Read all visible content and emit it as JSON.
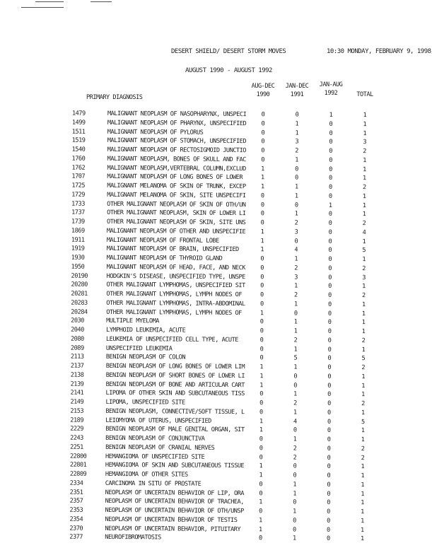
{
  "header": {
    "title": "DESERT SHIELD/ DESERT STORM MOVES",
    "datetime": "10:30 MONDAY, FEBRUARY 9, 1998",
    "subtitle": "AUGUST 1990 - AUGUST 1992"
  },
  "columns": {
    "diagnosis": "PRIMARY DIAGNOSIS",
    "c1": {
      "line1": "AUG-DEC",
      "line2": "1990"
    },
    "c2": {
      "line1": "JAN-DEC",
      "line2": "1991"
    },
    "c3": {
      "line1": "JAN-AUG",
      "line2": "1992"
    },
    "total": "TOTAL"
  },
  "rows": [
    [
      "1479",
      "MALIGNANT NEOPLASM OF NASOPHARYNX, UNSPECI",
      "0",
      "0",
      "1",
      "1"
    ],
    [
      "1499",
      "MALIGNANT NEOPLASM OF PHARYNX, UNSPECIFIED",
      "0",
      "1",
      "0",
      "1"
    ],
    [
      "1511",
      "MALIGNANT NEOPLASM OF PYLORUS",
      "0",
      "1",
      "0",
      "1"
    ],
    [
      "1519",
      "MALIGNANT NEOPLASM OF STOMACH, UNSPECIFIED",
      "0",
      "3",
      "0",
      "3"
    ],
    [
      "1540",
      "MALIGNANT NEOPLASM OF RECTOSIGMOID JUNCTIO",
      "0",
      "2",
      "0",
      "2"
    ],
    [
      "1760",
      "MALIGNANT NEOPLASM, BONES OF SKULL AND FAC",
      "0",
      "1",
      "0",
      "1"
    ],
    [
      "1762",
      "MALIGNANT NEOPLASM,VERTEBRAL COLUMN,EXCLUD",
      "1",
      "0",
      "0",
      "1"
    ],
    [
      "1707",
      "MALIGNANT NEOPLASM OF LONG BONES OF LOWER",
      "1",
      "0",
      "0",
      "1"
    ],
    [
      "1725",
      "MALIGNANT MELANOMA OF SKIN OF TRUNK, EXCEP",
      "1",
      "1",
      "0",
      "2"
    ],
    [
      "1729",
      "MALIGNANT MELANOMA OF SKIN, SITE UNSPECIFI",
      "0",
      "1",
      "0",
      "1"
    ],
    [
      "1733",
      "OTHER MALIGNANT NEOPLASM OF SKIN OF OTH/UN",
      "0",
      "0",
      "1",
      "1"
    ],
    [
      "1737",
      "OTHER MALIGNANT NEOPLASM, SKIN OF LOWER LI",
      "0",
      "1",
      "0",
      "1"
    ],
    [
      "1739",
      "OTHER MALIGNANT NEOPLASM OF SKIN, SITE UNS",
      "0",
      "2",
      "0",
      "2"
    ],
    [
      "1869",
      "MALIGNANT NEOPLASM OF OTHER AND UNSPECIFIE",
      "1",
      "3",
      "0",
      "4"
    ],
    [
      "1911",
      "MALIGNANT NEOPLASM OF FRONTAL LOBE",
      "1",
      "0",
      "0",
      "1"
    ],
    [
      "1919",
      "MALIGNANT NEOPLASM OF BRAIN, UNSPECIFIED",
      "1",
      "4",
      "0",
      "5"
    ],
    [
      "1930",
      "MALIGNANT NEOPLASM OF THYROID GLAND",
      "0",
      "1",
      "0",
      "1"
    ],
    [
      "1950",
      "MALIGNANT NEOPLASM OF HEAD, FACE, AND NECK",
      "0",
      "2",
      "0",
      "2"
    ],
    [
      "20190",
      "HODGKIN'S DISEASE, UNSPECIFIED TYPE, UNSPE",
      "0",
      "3",
      "0",
      "3"
    ],
    [
      "20280",
      "OTHER MALIGNANT LYMPHOMAS, UNSPECIFIED SIT",
      "0",
      "1",
      "0",
      "1"
    ],
    [
      "20281",
      "OTHER MALIGNANT LYMPHOMAS, LYMPH NODES OF",
      "0",
      "2",
      "0",
      "2"
    ],
    [
      "20283",
      "OTHER MALIGNANT LYMPHOMAS, INTRA-ABDOMINAL",
      "0",
      "1",
      "0",
      "1"
    ],
    [
      "20284",
      "OTHER MALIGNANT LYMPHOMAS, LYMPH NODES OF",
      "1",
      "0",
      "0",
      "1"
    ],
    [
      "2030",
      "MULTIPLE MYELOMA",
      "0",
      "1",
      "0",
      "1"
    ],
    [
      "2040",
      "LYMPHOID LEUKEMIA, ACUTE",
      "0",
      "1",
      "0",
      "1"
    ],
    [
      "2080",
      "LEUKEMIA OF UNSPECIFIED CELL TYPE, ACUTE",
      "0",
      "2",
      "0",
      "2"
    ],
    [
      "2089",
      "UNSPECIFIED LEUKEMIA",
      "0",
      "1",
      "0",
      "1"
    ],
    [
      "2113",
      "BENIGN NEOPLASM OF COLON",
      "0",
      "5",
      "0",
      "5"
    ],
    [
      "2137",
      "BENIGN NEOPLASM OF LONG BONES OF LOWER LIM",
      "1",
      "1",
      "0",
      "2"
    ],
    [
      "2138",
      "BENIGN NEOPLASM OF SHORT BONES OF LOWER LI",
      "1",
      "0",
      "0",
      "1"
    ],
    [
      "2139",
      "BENIGN NEOPLASM OF BONE AND ARTICULAR CART",
      "1",
      "0",
      "0",
      "1"
    ],
    [
      "2141",
      "LIPOMA OF OTHER SKIN AND SUBCUTANEOUS TISS",
      "0",
      "1",
      "0",
      "1"
    ],
    [
      "2149",
      "LIPOMA, UNSPECIFIED SITE",
      "0",
      "2",
      "0",
      "2"
    ],
    [
      "2153",
      "BENIGN NEOPLASM, CONNECTIVE/SOFT TISSUE, L",
      "0",
      "1",
      "0",
      "1"
    ],
    [
      "2189",
      "LEIOMYOMA OF UTERUS, UNSPECIFIED",
      "1",
      "4",
      "0",
      "5"
    ],
    [
      "2229",
      "BENIGN NEOPLASM OF MALE GENITAL ORGAN, SIT",
      "1",
      "0",
      "0",
      "1"
    ],
    [
      "2243",
      "BENIGN NEOPLASM OF CONJUNCTIVA",
      "0",
      "1",
      "0",
      "1"
    ],
    [
      "2251",
      "BENIGN NEOPLASM OF CRANIAL NERVES",
      "0",
      "2",
      "0",
      "2"
    ],
    [
      "22800",
      "HEMANGIOMA OF UNSPECIFIED SITE",
      "0",
      "2",
      "0",
      "2"
    ],
    [
      "22801",
      "HEMANGIOMA OF SKIN AND SUBCUTANEOUS TISSUE",
      "1",
      "0",
      "0",
      "1"
    ],
    [
      "22809",
      "HEMANGIOMA OF OTHER SITES",
      "1",
      "0",
      "0",
      "1"
    ],
    [
      "2334",
      "CARCINOMA IN SITU OF PROSTATE",
      "0",
      "1",
      "0",
      "1"
    ],
    [
      "2351",
      "NEOPLASM OF UNCERTAIN BEHAVIOR OF LIP, ORA",
      "0",
      "1",
      "0",
      "1"
    ],
    [
      "2357",
      "NEOPLASM OF UNCERTAIN BEHAVIOR OF TRACHEA,",
      "1",
      "0",
      "0",
      "1"
    ],
    [
      "2353",
      "NEOPLASM OF UNCERTAIN BEHAVIOR OF OTH/UNSP",
      "0",
      "1",
      "0",
      "1"
    ],
    [
      "2354",
      "NEOPLASM OF UNCERTAIN BEHAVIOR OF TESTIS",
      "1",
      "0",
      "0",
      "1"
    ],
    [
      "2370",
      "NEOPLASM OF UNCERTAIN BEHAVIOR, PITUITARY",
      "1",
      "0",
      "0",
      "1"
    ],
    [
      "2377",
      "NEUROFIBROMATOSIS",
      "0",
      "1",
      "0",
      "1"
    ]
  ]
}
